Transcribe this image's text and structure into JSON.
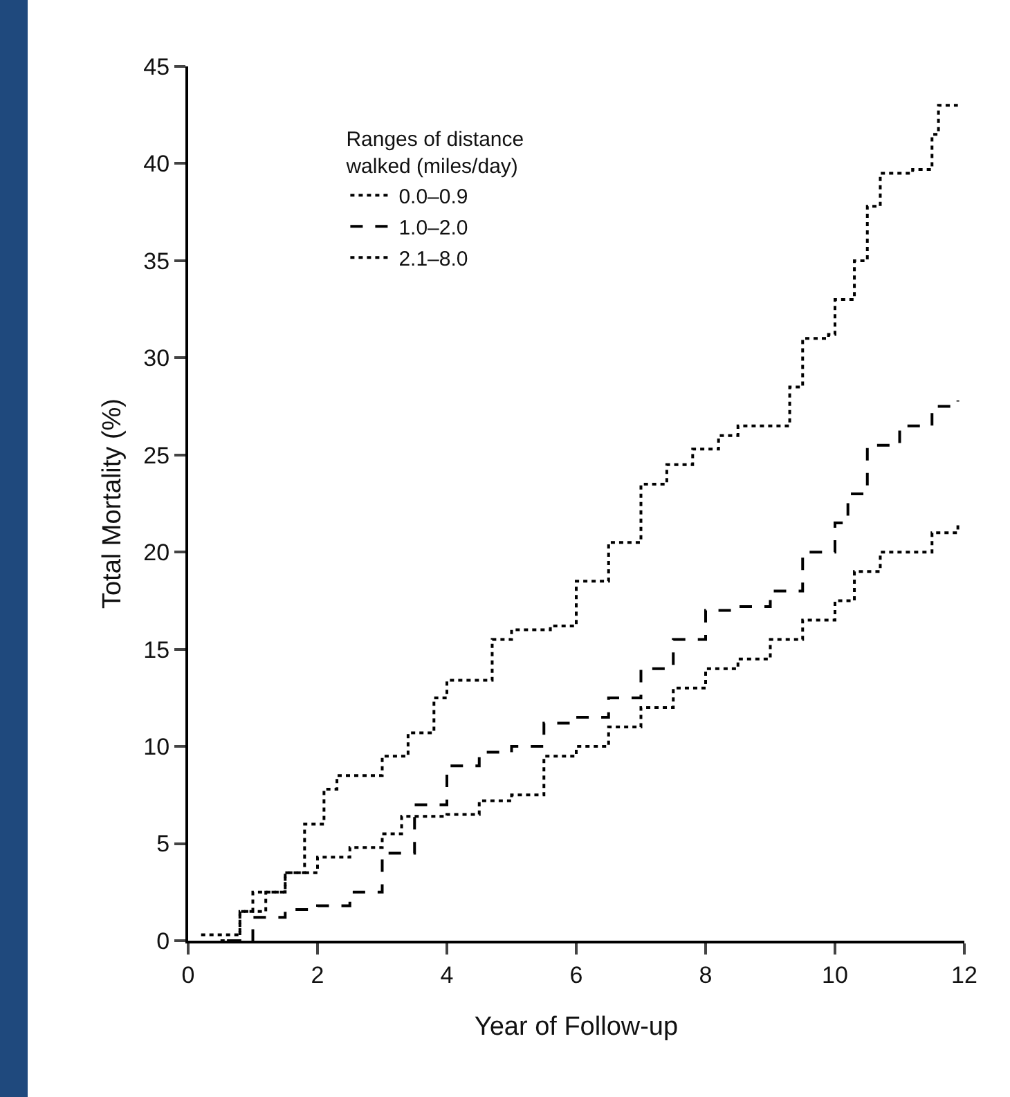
{
  "chart_data": {
    "type": "step",
    "xlabel": "Year of Follow-up",
    "ylabel": "Total Mortality (%)",
    "legend_title": "Ranges of distance\nwalked (miles/day)",
    "legend": "top left",
    "grid": false,
    "marker": "none",
    "xlim": [
      0,
      12
    ],
    "xticks": [
      0,
      2,
      4,
      6,
      8,
      10,
      12
    ],
    "ylim": [
      0,
      45
    ],
    "yticks": [
      0,
      5,
      10,
      15,
      20,
      25,
      30,
      35,
      40,
      45
    ],
    "series": [
      {
        "name": "0.0–0.9",
        "color": "#000000",
        "line_style": "dotted",
        "x": [
          0.5,
          0.8,
          1.2,
          1.5,
          1.8,
          2.1,
          2.3,
          3,
          3.4,
          3.8,
          4,
          4.7,
          5,
          5.6,
          6,
          6.5,
          7,
          7.4,
          7.8,
          8.2,
          8.5,
          9.2,
          9.3,
          9.5,
          9.9,
          10,
          10.3,
          10.5,
          10.7,
          11.2,
          11.5,
          11.6,
          11.9
        ],
        "values": [
          0,
          1.5,
          2.5,
          3.5,
          6,
          7.8,
          8.5,
          9.5,
          10.7,
          12.5,
          13.4,
          15.5,
          16,
          16.2,
          18.5,
          20.5,
          23.5,
          24.5,
          25.3,
          26,
          26.5,
          26.5,
          28.5,
          31,
          31.2,
          33,
          35,
          37.8,
          39.5,
          39.7,
          41.5,
          43,
          43
        ]
      },
      {
        "name": "1.0–2.0",
        "color": "#000000",
        "line_style": "dashed",
        "x": [
          0.6,
          1,
          1.5,
          2,
          2.5,
          3,
          3.5,
          4,
          4.5,
          5,
          5.5,
          6,
          6.5,
          7,
          7.5,
          8,
          8.5,
          9,
          9.5,
          10,
          10.2,
          10.5,
          11,
          11.5,
          11.9
        ],
        "values": [
          0,
          1.2,
          1.6,
          1.8,
          2.5,
          4.5,
          7,
          9,
          9.7,
          10,
          11.2,
          11.5,
          12.5,
          14,
          15.5,
          17,
          17.2,
          18,
          20,
          21.5,
          23,
          25.5,
          26.5,
          27.5,
          27.8
        ]
      },
      {
        "name": "2.1–8.0",
        "color": "#000000",
        "line_style": "dotted",
        "x": [
          0.2,
          0.5,
          0.8,
          1,
          1.5,
          2,
          2.5,
          3,
          3.3,
          4,
          4.5,
          5,
          5.5,
          6,
          6.5,
          7,
          7.5,
          8,
          8.5,
          9,
          9.5,
          10,
          10.3,
          10.7,
          11,
          11.5,
          11.9
        ],
        "values": [
          0.3,
          0.3,
          1.5,
          2.5,
          3.5,
          4.3,
          4.8,
          5.5,
          6.4,
          6.5,
          7.2,
          7.5,
          9.5,
          10,
          11,
          12,
          13,
          14,
          14.5,
          15.5,
          16.5,
          17.5,
          19,
          20,
          20,
          21,
          21.5
        ]
      }
    ]
  }
}
